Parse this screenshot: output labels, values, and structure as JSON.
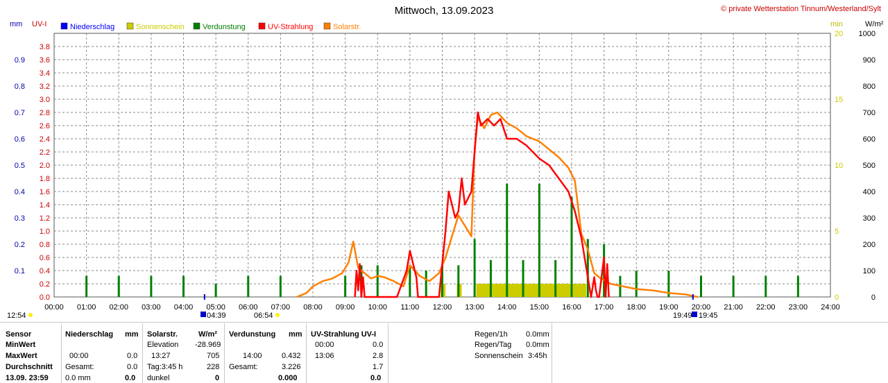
{
  "header": {
    "title": "Mittwoch, 13.09.2023",
    "copyright": "© private Wetterstation Tinnum/Westerland/Sylt",
    "left_units": [
      "mm",
      "UV-I"
    ],
    "right_units": [
      "min",
      "W/m²"
    ]
  },
  "legend": [
    {
      "label": "Niederschlag",
      "color": "#0000ff"
    },
    {
      "label": "Sonnenschein",
      "color": "#cccc00"
    },
    {
      "label": "Verdunstung",
      "color": "#008000"
    },
    {
      "label": "UV-Strahlung",
      "color": "#ff0000"
    },
    {
      "label": "Solarstr.",
      "color": "#ff8000"
    }
  ],
  "chart_data": {
    "type": "line",
    "title": "Mittwoch, 13.09.2023",
    "x_ticks": [
      "00:00",
      "01:00",
      "02:00",
      "03:00",
      "04:00",
      "05:00",
      "06:00",
      "07:00",
      "08:00",
      "09:00",
      "10:00",
      "11:00",
      "12:00",
      "13:00",
      "14:00",
      "15:00",
      "16:00",
      "17:00",
      "18:00",
      "19:00",
      "20:00",
      "21:00",
      "22:00",
      "23:00",
      "24:00"
    ],
    "xlim": [
      0,
      24
    ],
    "axes": {
      "mm": {
        "ticks": [
          "0.1",
          "0.2",
          "0.3",
          "0.4",
          "0.5",
          "0.6",
          "0.7",
          "0.8",
          "0.9"
        ],
        "ylim": [
          0,
          1.0
        ],
        "color": "#0000aa"
      },
      "uv": {
        "ticks": [
          "0.0",
          "0.2",
          "0.4",
          "0.6",
          "0.8",
          "1.0",
          "1.2",
          "1.4",
          "1.6",
          "1.8",
          "2.0",
          "2.2",
          "2.4",
          "2.6",
          "2.8",
          "3.0",
          "3.2",
          "3.4",
          "3.6",
          "3.8"
        ],
        "ylim": [
          0,
          4.0
        ],
        "color": "#cc0000"
      },
      "min": {
        "ticks": [
          "0",
          "5",
          "10",
          "15",
          "20"
        ],
        "ylim": [
          0,
          20
        ],
        "color": "#cccc00"
      },
      "wm2": {
        "ticks": [
          "0",
          "100",
          "200",
          "300",
          "400",
          "500",
          "600",
          "700",
          "800",
          "900",
          "1000"
        ],
        "ylim": [
          0,
          1000
        ],
        "color": "#000000"
      }
    },
    "grid": true,
    "series": [
      {
        "name": "Solarstr.",
        "axis": "wm2",
        "color": "#ff8000",
        "x": [
          7.5,
          7.8,
          8.0,
          8.3,
          8.6,
          8.9,
          9.1,
          9.25,
          9.4,
          9.6,
          9.8,
          10.0,
          10.2,
          10.5,
          10.8,
          11.0,
          11.3,
          11.6,
          11.9,
          12.1,
          12.3,
          12.5,
          12.7,
          12.9,
          13.0,
          13.1,
          13.3,
          13.5,
          13.7,
          14.0,
          14.3,
          14.6,
          15.0,
          15.3,
          15.6,
          15.9,
          16.1,
          16.3,
          16.5,
          16.7,
          16.9,
          17.2,
          17.6,
          18.0,
          18.5,
          19.0,
          19.5,
          19.9
        ],
        "y": [
          0,
          15,
          40,
          60,
          70,
          90,
          130,
          210,
          110,
          90,
          70,
          80,
          75,
          60,
          40,
          120,
          80,
          60,
          90,
          150,
          230,
          310,
          270,
          230,
          560,
          680,
          640,
          690,
          700,
          660,
          640,
          610,
          590,
          560,
          530,
          490,
          440,
          240,
          180,
          90,
          70,
          50,
          40,
          30,
          25,
          15,
          10,
          0
        ]
      },
      {
        "name": "UV-Strahlung",
        "axis": "uv",
        "color": "#ff0000",
        "x": [
          9.3,
          9.35,
          9.4,
          9.45,
          9.5,
          9.55,
          9.6,
          10.6,
          10.9,
          11.0,
          11.1,
          11.2,
          11.25,
          11.9,
          12.0,
          12.1,
          12.2,
          12.3,
          12.4,
          12.5,
          12.6,
          12.7,
          12.9,
          13.0,
          13.1,
          13.2,
          13.4,
          13.6,
          13.8,
          14.0,
          14.3,
          14.6,
          15.0,
          15.3,
          15.6,
          15.9,
          16.1,
          16.3,
          16.5,
          16.6,
          16.7,
          16.75,
          16.8,
          16.85,
          17.0,
          17.05,
          17.1,
          17.15
        ],
        "y": [
          0,
          0.4,
          0.1,
          0.5,
          0,
          0.3,
          0,
          0.0,
          0.4,
          0.7,
          0.5,
          0.3,
          0,
          0,
          0.5,
          1.0,
          1.6,
          1.4,
          1.2,
          1.3,
          1.8,
          1.4,
          1.6,
          2.2,
          2.8,
          2.6,
          2.7,
          2.6,
          2.7,
          2.4,
          2.4,
          2.3,
          2.1,
          2.0,
          1.8,
          1.6,
          1.3,
          0.9,
          0.3,
          0,
          0.3,
          0.1,
          0,
          0,
          0.6,
          0,
          0.5,
          0
        ]
      },
      {
        "name": "Verdunstung",
        "axis": "mm",
        "type": "bar",
        "color": "#008000",
        "x": [
          1.0,
          2.0,
          3.0,
          4.0,
          5.0,
          6.0,
          7.0,
          9.0,
          9.5,
          10.0,
          11.0,
          11.5,
          12.0,
          12.5,
          13.0,
          13.5,
          14.0,
          14.5,
          15.0,
          15.5,
          16.0,
          16.5,
          17.0,
          17.5,
          18.0,
          19.0,
          20.0,
          21.0,
          22.0,
          23.0
        ],
        "y": [
          0.08,
          0.08,
          0.08,
          0.08,
          0.05,
          0.08,
          0.08,
          0.08,
          0.12,
          0.12,
          0.12,
          0.1,
          0.12,
          0.12,
          0.22,
          0.14,
          0.43,
          0.14,
          0.43,
          0.14,
          0.38,
          0.22,
          0.2,
          0.08,
          0.1,
          0.1,
          0.08,
          0.08,
          0.08,
          0.08
        ]
      },
      {
        "name": "Sonnenschein",
        "axis": "min",
        "type": "bar",
        "color": "#cccc00",
        "x": [
          12.0,
          12.5,
          13.0,
          13.5,
          14.0,
          14.5,
          15.0,
          15.5,
          16.0,
          16.3
        ],
        "y": [
          1,
          1,
          1,
          1,
          1,
          1,
          1,
          1,
          1,
          1
        ],
        "spans": [
          [
            11.95,
            12.1
          ],
          [
            12.45,
            12.6
          ],
          [
            13.05,
            16.45
          ]
        ]
      }
    ],
    "annotations": {
      "sunrise": "04:39",
      "sunset": "19:45",
      "left_note": "12:54",
      "dawn": "06:54",
      "dusk": "19:49"
    }
  },
  "table": {
    "col1": {
      "r0": "Sensor",
      "r1": "MinWert",
      "r2": "MaxWert",
      "r3": "Durchschnitt",
      "r4": "13.09. 23:59"
    },
    "niederschlag": {
      "head": "Niederschlag",
      "unit": "mm",
      "r2a": "00:00",
      "r2b": "0.0",
      "r3a": "Gesamt:",
      "r3b": "0.0",
      "r4a": "0.0 mm",
      "r4b": "0.0",
      "r1b": ""
    },
    "solar": {
      "head": "Solarstr.",
      "unit": "W/m²",
      "r1a": "Elevation",
      "r1b": "-28.969",
      "r2a": "13:27",
      "r2b": "705",
      "r3a": "Tag:3:45 h",
      "r3b": "228",
      "r4a": "dunkel",
      "r4b": "0"
    },
    "verdunstung": {
      "head": "Verdunstung",
      "unit": "mm",
      "r2a": "14:00",
      "r2b": "0.432",
      "r3a": "Gesamt:",
      "r3b": "3.226",
      "r4b": "0.000"
    },
    "uv": {
      "head": "UV-Strahlung UV-I",
      "r1a": "00:00",
      "r1b": "0.0",
      "r2a": "13:06",
      "r2b": "2.8",
      "r3b": "1.7",
      "r4b": "0.0"
    },
    "regen": {
      "r0a": "Regen/1h",
      "r0b": "0.0mm",
      "r1a": "Regen/Tag",
      "r1b": "0.0mm",
      "r2a": "Sonnenschein",
      "r2b": "3:45h"
    }
  }
}
